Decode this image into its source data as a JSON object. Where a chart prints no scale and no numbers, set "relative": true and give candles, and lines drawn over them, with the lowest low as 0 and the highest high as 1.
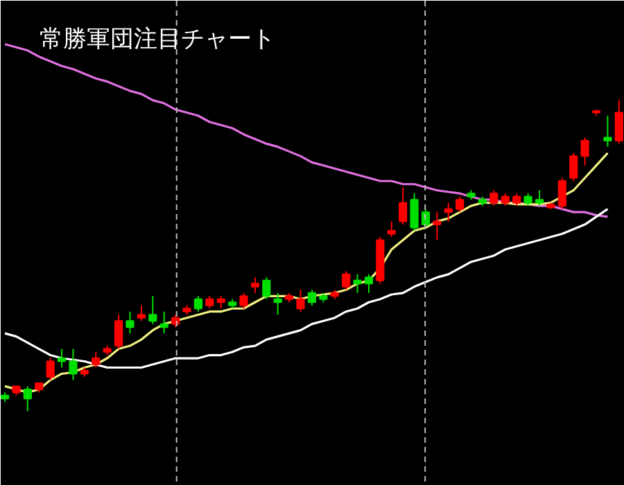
{
  "chart_data": {
    "type": "candlestick",
    "title": "常勝軍団注目チャート",
    "relative": true,
    "grid": false,
    "categories": [
      null,
      null,
      null,
      null,
      null,
      null,
      null,
      null,
      null,
      null,
      null,
      null,
      null,
      null,
      null,
      null,
      null,
      null,
      null,
      null,
      null,
      null,
      null,
      null,
      null,
      null,
      null,
      null,
      null,
      null,
      null,
      null,
      null,
      null,
      null,
      null,
      null,
      null,
      null,
      null,
      null,
      null,
      null,
      null,
      null,
      null,
      null,
      null,
      null,
      null,
      null,
      null,
      null,
      null,
      null
    ],
    "ohlc": [
      [
        0.05,
        0.06,
        0.03,
        0.04
      ],
      [
        0.06,
        0.08,
        0.05,
        0.08
      ],
      [
        0.07,
        0.08,
        0.0,
        0.04
      ],
      [
        0.07,
        0.09,
        0.06,
        0.09
      ],
      [
        0.11,
        0.17,
        0.1,
        0.16
      ],
      [
        0.17,
        0.2,
        0.14,
        0.16
      ],
      [
        0.16,
        0.2,
        0.1,
        0.12
      ],
      [
        0.12,
        0.14,
        0.11,
        0.13
      ],
      [
        0.15,
        0.19,
        0.14,
        0.17
      ],
      [
        0.19,
        0.21,
        0.18,
        0.2
      ],
      [
        0.21,
        0.31,
        0.2,
        0.29
      ],
      [
        0.29,
        0.32,
        0.25,
        0.27
      ],
      [
        0.3,
        0.34,
        0.29,
        0.31
      ],
      [
        0.31,
        0.37,
        0.28,
        0.29
      ],
      [
        0.28,
        0.32,
        0.25,
        0.27
      ],
      [
        0.28,
        0.31,
        0.27,
        0.3
      ],
      [
        0.32,
        0.34,
        0.31,
        0.33
      ],
      [
        0.36,
        0.37,
        0.32,
        0.33
      ],
      [
        0.34,
        0.37,
        0.33,
        0.36
      ],
      [
        0.35,
        0.37,
        0.33,
        0.36
      ],
      [
        0.35,
        0.36,
        0.33,
        0.34
      ],
      [
        0.34,
        0.38,
        0.33,
        0.37
      ],
      [
        0.4,
        0.43,
        0.38,
        0.41
      ],
      [
        0.42,
        0.43,
        0.36,
        0.37
      ],
      [
        0.36,
        0.38,
        0.31,
        0.35
      ],
      [
        0.36,
        0.38,
        0.35,
        0.37
      ],
      [
        0.33,
        0.39,
        0.32,
        0.36
      ],
      [
        0.38,
        0.39,
        0.34,
        0.35
      ],
      [
        0.37,
        0.38,
        0.35,
        0.36
      ],
      [
        0.37,
        0.39,
        0.36,
        0.38
      ],
      [
        0.4,
        0.45,
        0.39,
        0.44
      ],
      [
        0.42,
        0.44,
        0.38,
        0.41
      ],
      [
        0.43,
        0.44,
        0.38,
        0.41
      ],
      [
        0.42,
        0.56,
        0.41,
        0.55
      ],
      [
        0.57,
        0.61,
        0.56,
        0.58
      ],
      [
        0.61,
        0.72,
        0.6,
        0.67
      ],
      [
        0.68,
        0.7,
        0.58,
        0.59
      ],
      [
        0.64,
        0.65,
        0.59,
        0.6
      ],
      [
        0.6,
        0.64,
        0.55,
        0.61
      ],
      [
        0.64,
        0.67,
        0.61,
        0.65
      ],
      [
        0.65,
        0.69,
        0.64,
        0.68
      ],
      [
        0.7,
        0.71,
        0.68,
        0.69
      ],
      [
        0.68,
        0.69,
        0.66,
        0.67
      ],
      [
        0.67,
        0.71,
        0.66,
        0.7
      ],
      [
        0.67,
        0.7,
        0.66,
        0.69
      ],
      [
        0.67,
        0.7,
        0.66,
        0.69
      ],
      [
        0.69,
        0.7,
        0.66,
        0.67
      ],
      [
        0.68,
        0.71,
        0.66,
        0.67
      ],
      [
        0.655,
        0.67,
        0.65,
        0.665
      ],
      [
        0.66,
        0.75,
        0.65,
        0.74
      ],
      [
        0.75,
        0.83,
        0.74,
        0.82
      ],
      [
        0.82,
        0.88,
        0.79,
        0.87
      ],
      [
        0.96,
        0.97,
        0.95,
        0.965
      ],
      [
        0.88,
        0.95,
        0.85,
        0.87
      ],
      [
        0.87,
        1.0,
        0.86,
        0.96
      ]
    ],
    "colors": [
      "#00e000",
      "#ff0000",
      "#00e000",
      "#ff0000",
      "#ff0000",
      "#00e000",
      "#00e000",
      "#ff0000",
      "#ff0000",
      "#ff0000",
      "#ff0000",
      "#00e000",
      "#ff0000",
      "#00e000",
      "#00e000",
      "#ff0000",
      "#ff0000",
      "#00e000",
      "#ff0000",
      "#ff0000",
      "#00e000",
      "#ff0000",
      "#ff0000",
      "#00e000",
      "#00e000",
      "#ff0000",
      "#ff0000",
      "#00e000",
      "#00e000",
      "#ff0000",
      "#ff0000",
      "#00e000",
      "#00e000",
      "#ff0000",
      "#ff0000",
      "#ff0000",
      "#00e000",
      "#00e000",
      "#ff0000",
      "#ff0000",
      "#ff0000",
      "#00e000",
      "#00e000",
      "#ff0000",
      "#ff0000",
      "#ff0000",
      "#00e000",
      "#00e000",
      "#ff0000",
      "#ff0000",
      "#ff0000",
      "#ff0000",
      "#ff0000",
      "#00e000",
      "#ff0000"
    ],
    "series": [
      {
        "type": "line",
        "color": "#e070e0",
        "values": [
          1.18,
          1.17,
          1.16,
          1.14,
          1.125,
          1.11,
          1.1,
          1.085,
          1.07,
          1.06,
          1.045,
          1.03,
          1.02,
          1.0,
          0.99,
          0.97,
          0.96,
          0.95,
          0.93,
          0.92,
          0.91,
          0.89,
          0.875,
          0.86,
          0.85,
          0.835,
          0.82,
          0.8,
          0.79,
          0.78,
          0.77,
          0.76,
          0.75,
          0.74,
          0.74,
          0.73,
          0.73,
          0.72,
          0.71,
          0.705,
          0.7,
          0.69,
          0.68,
          0.68,
          0.67,
          0.67,
          0.665,
          0.66,
          0.66,
          0.65,
          0.64,
          0.64,
          0.63,
          0.625,
          null
        ]
      },
      {
        "type": "line",
        "color": "#ffffff",
        "values": [
          0.25,
          0.24,
          0.22,
          0.2,
          0.18,
          0.17,
          0.165,
          0.16,
          0.15,
          0.14,
          0.14,
          0.14,
          0.14,
          0.15,
          0.16,
          0.17,
          0.17,
          0.17,
          0.18,
          0.18,
          0.19,
          0.205,
          0.21,
          0.23,
          0.24,
          0.25,
          0.26,
          0.28,
          0.29,
          0.3,
          0.32,
          0.33,
          0.35,
          0.36,
          0.375,
          0.38,
          0.4,
          0.415,
          0.43,
          0.44,
          0.46,
          0.48,
          0.49,
          0.5,
          0.52,
          0.53,
          0.54,
          0.55,
          0.56,
          0.57,
          0.585,
          0.6,
          0.625,
          0.65,
          null
        ]
      },
      {
        "type": "line",
        "color": "#f0f080",
        "values": [
          0.08,
          0.07,
          0.06,
          0.07,
          0.1,
          0.12,
          0.125,
          0.14,
          0.15,
          0.17,
          0.2,
          0.21,
          0.23,
          0.26,
          0.28,
          0.29,
          0.3,
          0.31,
          0.32,
          0.32,
          0.33,
          0.33,
          0.35,
          0.37,
          0.37,
          0.37,
          0.36,
          0.37,
          0.375,
          0.38,
          0.39,
          0.41,
          0.42,
          0.46,
          0.52,
          0.55,
          0.58,
          0.59,
          0.61,
          0.62,
          0.64,
          0.66,
          0.67,
          0.67,
          0.67,
          0.665,
          0.665,
          0.665,
          0.67,
          0.69,
          0.71,
          0.75,
          0.79,
          0.83,
          null
        ]
      }
    ]
  }
}
